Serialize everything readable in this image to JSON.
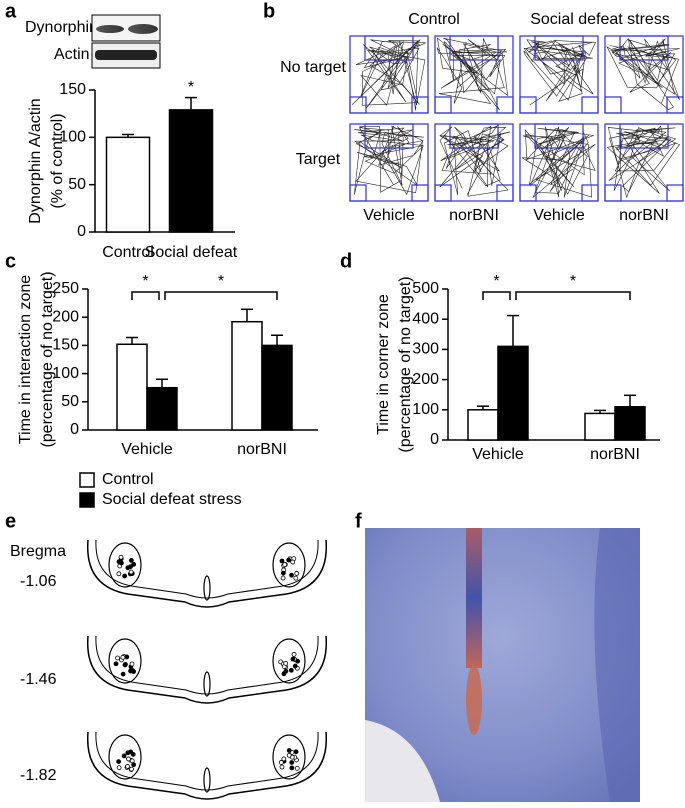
{
  "panel_labels": [
    "a",
    "b",
    "c",
    "d",
    "e",
    "f"
  ],
  "blot": {
    "labels": [
      "Dynorphin A",
      "Actin"
    ]
  },
  "chart_data": [
    {
      "type": "bar",
      "ylabel": [
        "Dynorphin A/actin",
        "(% of control)"
      ],
      "categories": [
        "Control",
        "Social defeat"
      ],
      "values": [
        100,
        129
      ],
      "errors": [
        3,
        13
      ],
      "colors": [
        "#ffffff",
        "#000000"
      ],
      "ylim": [
        0,
        150
      ],
      "yticks": [
        0,
        50,
        100,
        150
      ],
      "significance": [
        "*"
      ]
    },
    {
      "type": "bar",
      "ylabel": [
        "Time in interaction zone",
        "(percentage of no target)"
      ],
      "categories": [
        "Vehicle",
        "norBNI"
      ],
      "series": [
        {
          "name": "Control",
          "color": "#ffffff",
          "values": [
            152,
            192
          ],
          "errors": [
            12,
            22
          ]
        },
        {
          "name": "Social defeat stress",
          "color": "#000000",
          "values": [
            75,
            150
          ],
          "errors": [
            15,
            18
          ]
        }
      ],
      "ylim": [
        0,
        250
      ],
      "yticks": [
        0,
        50,
        100,
        150,
        200,
        250
      ],
      "significance": [
        "*",
        "*"
      ]
    },
    {
      "type": "bar",
      "ylabel": [
        "Time in corner zone",
        "(percentage of no target)"
      ],
      "categories": [
        "Vehicle",
        "norBNI"
      ],
      "series": [
        {
          "color": "#ffffff",
          "values": [
            100,
            88
          ],
          "errors": [
            12,
            10
          ]
        },
        {
          "color": "#000000",
          "values": [
            310,
            110
          ],
          "errors": [
            102,
            38
          ]
        }
      ],
      "ylim": [
        0,
        500
      ],
      "yticks": [
        0,
        100,
        200,
        300,
        400,
        500
      ],
      "significance": [
        "*",
        "*"
      ]
    }
  ],
  "tracking": {
    "column_groups": [
      "Control",
      "Social defeat stress"
    ],
    "rows": [
      "No target",
      "Target"
    ],
    "columns": [
      "Vehicle",
      "norBNI",
      "Vehicle",
      "norBNI"
    ]
  },
  "atlas": {
    "title": "Bregma",
    "levels": [
      "-1.06",
      "-1.46",
      "-1.82"
    ]
  }
}
